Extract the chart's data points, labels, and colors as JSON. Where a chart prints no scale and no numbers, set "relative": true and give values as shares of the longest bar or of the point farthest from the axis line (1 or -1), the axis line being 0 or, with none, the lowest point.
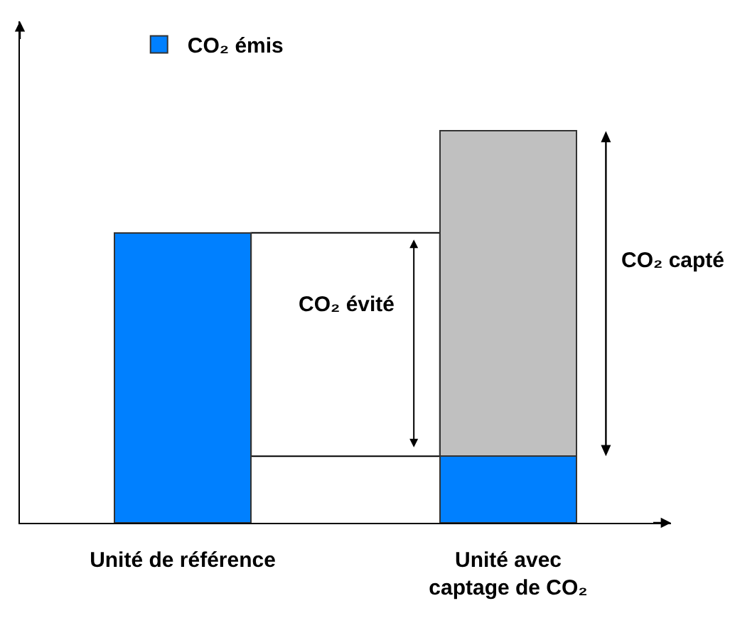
{
  "chart_data": {
    "type": "bar",
    "relative": true,
    "stacked": true,
    "legend": "top left",
    "categories": [
      "Unité de référence",
      "Unité avec\ncaptage de CO₂"
    ],
    "series": [
      {
        "name": "CO₂ émis",
        "color": "#0080ff",
        "values": [
          0.74,
          0.17
        ]
      },
      {
        "name": "CO₂ capté",
        "color": "#c0c0c0",
        "values": [
          null,
          0.83
        ]
      }
    ],
    "bands": [
      {
        "axis": "y",
        "from": 0.17,
        "to": 0.74,
        "label": "CO₂ évité",
        "color": "#ffffff"
      }
    ]
  }
}
